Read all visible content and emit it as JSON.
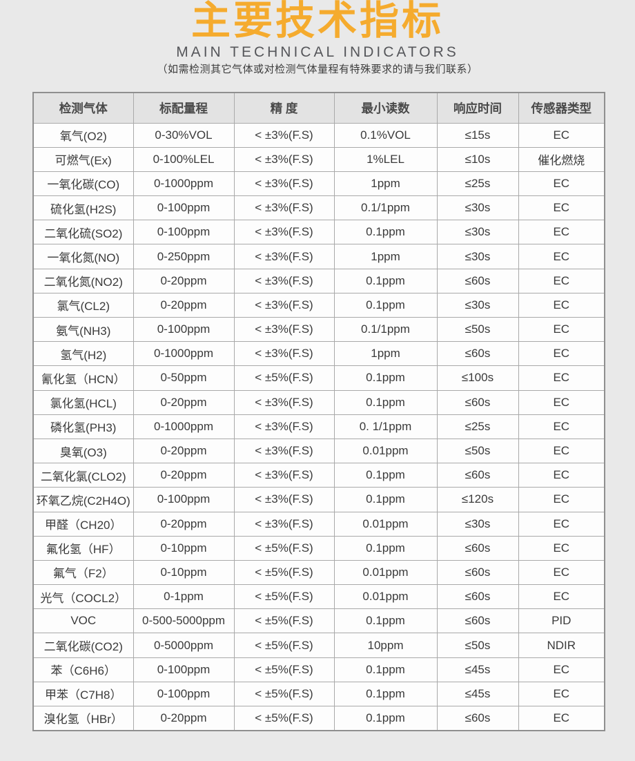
{
  "page": {
    "background_color": "#e9e9e9",
    "accent_color": "#f5ab2e"
  },
  "header": {
    "title": "主要技术指标",
    "subtitle": "MAIN TECHNICAL INDICATORS",
    "note": "（如需检测其它气体或对检测气体量程有特殊要求的请与我们联系）"
  },
  "table": {
    "columns": [
      "检测气体",
      "标配量程",
      "精 度",
      "最小读数",
      "响应时间",
      "传感器类型"
    ],
    "rows": [
      [
        "氧气(O2)",
        "0-30%VOL",
        "< ±3%(F.S)",
        "0.1%VOL",
        "≤15s",
        "EC"
      ],
      [
        "可燃气(Ex)",
        "0-100%LEL",
        "< ±3%(F.S)",
        "1%LEL",
        "≤10s",
        "催化燃烧"
      ],
      [
        "一氧化碳(CO)",
        "0-1000ppm",
        "< ±3%(F.S)",
        "1ppm",
        "≤25s",
        "EC"
      ],
      [
        "硫化氢(H2S)",
        "0-100ppm",
        "< ±3%(F.S)",
        "0.1/1ppm",
        "≤30s",
        "EC"
      ],
      [
        "二氧化硫(SO2)",
        "0-100ppm",
        "< ±3%(F.S)",
        "0.1ppm",
        "≤30s",
        "EC"
      ],
      [
        "一氧化氮(NO)",
        "0-250ppm",
        "< ±3%(F.S)",
        "1ppm",
        "≤30s",
        "EC"
      ],
      [
        "二氧化氮(NO2)",
        "0-20ppm",
        "< ±3%(F.S)",
        "0.1ppm",
        "≤60s",
        "EC"
      ],
      [
        "氯气(CL2)",
        "0-20ppm",
        "< ±3%(F.S)",
        "0.1ppm",
        "≤30s",
        "EC"
      ],
      [
        "氨气(NH3)",
        "0-100ppm",
        "< ±3%(F.S)",
        "0.1/1ppm",
        "≤50s",
        "EC"
      ],
      [
        "氢气(H2)",
        "0-1000ppm",
        "< ±3%(F.S)",
        "1ppm",
        "≤60s",
        "EC"
      ],
      [
        "氰化氢（HCN）",
        "0-50ppm",
        "< ±5%(F.S)",
        "0.1ppm",
        "≤100s",
        "EC"
      ],
      [
        "氯化氢(HCL)",
        "0-20ppm",
        "< ±3%(F.S)",
        "0.1ppm",
        "≤60s",
        "EC"
      ],
      [
        "磷化氢(PH3)",
        "0-1000ppm",
        "< ±3%(F.S)",
        "0. 1/1ppm",
        "≤25s",
        "EC"
      ],
      [
        "臭氧(O3)",
        "0-20ppm",
        "< ±3%(F.S)",
        "0.01ppm",
        "≤50s",
        "EC"
      ],
      [
        "二氧化氯(CLO2)",
        "0-20ppm",
        "< ±3%(F.S)",
        "0.1ppm",
        "≤60s",
        "EC"
      ],
      [
        "环氧乙烷(C2H4O)",
        "0-100ppm",
        "< ±3%(F.S)",
        "0.1ppm",
        "≤120s",
        "EC"
      ],
      [
        "甲醛（CH20）",
        "0-20ppm",
        "< ±3%(F.S)",
        "0.01ppm",
        "≤30s",
        "EC"
      ],
      [
        "氟化氢（HF）",
        "0-10ppm",
        "< ±5%(F.S)",
        "0.1ppm",
        "≤60s",
        "EC"
      ],
      [
        "氟气（F2）",
        "0-10ppm",
        "< ±5%(F.S)",
        "0.01ppm",
        "≤60s",
        "EC"
      ],
      [
        "光气（COCL2）",
        "0-1ppm",
        "< ±5%(F.S)",
        "0.01ppm",
        "≤60s",
        "EC"
      ],
      [
        "VOC",
        "0-500-5000ppm",
        "< ±5%(F.S)",
        "0.1ppm",
        "≤60s",
        "PID"
      ],
      [
        "二氧化碳(CO2)",
        "0-5000ppm",
        "< ±5%(F.S)",
        "10ppm",
        "≤50s",
        "NDIR"
      ],
      [
        "苯（C6H6）",
        "0-100ppm",
        "< ±5%(F.S)",
        "0.1ppm",
        "≤45s",
        "EC"
      ],
      [
        "甲苯（C7H8）",
        "0-100ppm",
        "< ±5%(F.S)",
        "0.1ppm",
        "≤45s",
        "EC"
      ],
      [
        "溴化氢（HBr）",
        "0-20ppm",
        "< ±5%(F.S)",
        "0.1ppm",
        "≤60s",
        "EC"
      ]
    ]
  }
}
